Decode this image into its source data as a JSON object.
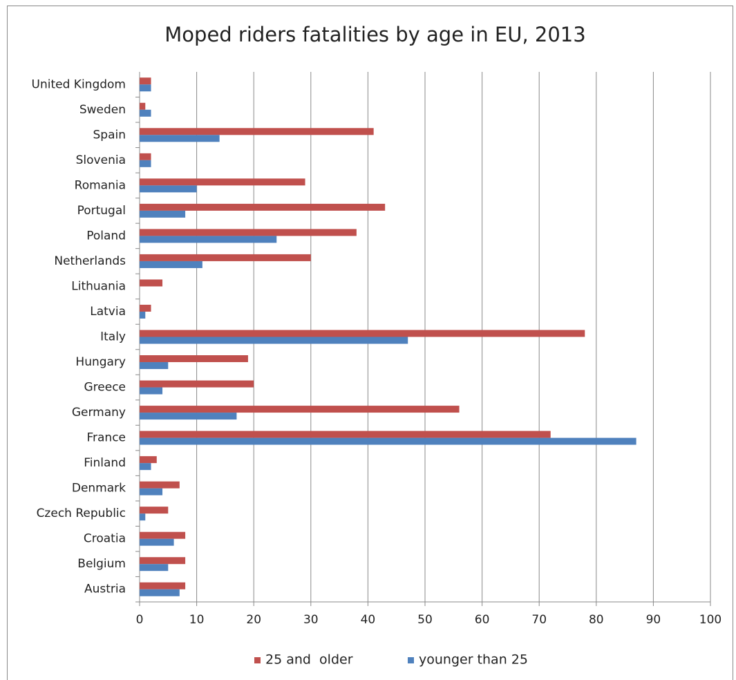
{
  "chart_data": {
    "type": "barh",
    "title": "Moped riders fatalities by age in EU, 2013",
    "categories": [
      "Austria",
      "Belgium",
      "Croatia",
      "Czech Republic",
      "Denmark",
      "Finland",
      "France",
      "Germany",
      "Greece",
      "Hungary",
      "Italy",
      "Latvia",
      "Lithuania",
      "Netherlands",
      "Poland",
      "Portugal",
      "Romania",
      "Slovenia",
      "Spain",
      "Sweden",
      "United Kingdom"
    ],
    "series": [
      {
        "name": "25 and  older",
        "color": "#c0504d",
        "values": [
          8,
          8,
          8,
          5,
          7,
          3,
          72,
          56,
          20,
          19,
          78,
          2,
          4,
          30,
          38,
          43,
          29,
          2,
          41,
          1,
          2
        ]
      },
      {
        "name": "younger than 25",
        "color": "#4f81bd",
        "values": [
          7,
          5,
          6,
          1,
          4,
          2,
          87,
          17,
          4,
          5,
          47,
          1,
          0,
          11,
          24,
          8,
          10,
          2,
          14,
          2,
          2
        ]
      }
    ],
    "xlim": [
      0,
      100
    ],
    "xticks": [
      0,
      10,
      20,
      30,
      40,
      50,
      60,
      70,
      80,
      90,
      100
    ],
    "grid": true,
    "legend": "bottom"
  }
}
